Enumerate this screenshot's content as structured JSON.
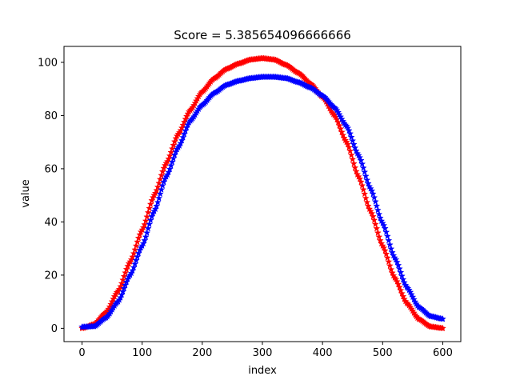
{
  "chart_data": {
    "type": "scatter",
    "title": "Score = 5.385654096666666",
    "xlabel": "index",
    "ylabel": "value",
    "xlim": [
      -30,
      630
    ],
    "ylim": [
      -5,
      106
    ],
    "xticks": [
      0,
      100,
      200,
      300,
      400,
      500,
      600
    ],
    "yticks": [
      0,
      20,
      40,
      60,
      80,
      100
    ],
    "grid": false,
    "legend": "none",
    "series": [
      {
        "color": "#ff0000",
        "marker": "star",
        "x": [
          0,
          20,
          40,
          60,
          80,
          100,
          120,
          140,
          160,
          180,
          200,
          220,
          240,
          260,
          280,
          300,
          320,
          340,
          360,
          380,
          400,
          420,
          440,
          460,
          480,
          500,
          520,
          540,
          560,
          580,
          600
        ],
        "values": [
          0,
          1.5,
          6,
          14,
          25,
          37,
          50,
          62,
          73,
          82,
          89,
          94,
          97.5,
          99.5,
          101,
          101.5,
          101,
          99,
          96,
          92,
          87,
          80,
          70,
          57,
          44,
          31,
          19,
          9.5,
          3.5,
          0.6,
          0
        ]
      },
      {
        "color": "#0000ff",
        "marker": "star",
        "x": [
          0,
          20,
          40,
          60,
          80,
          100,
          120,
          140,
          160,
          180,
          200,
          220,
          240,
          260,
          280,
          300,
          320,
          340,
          360,
          380,
          400,
          420,
          440,
          460,
          480,
          500,
          520,
          540,
          560,
          580,
          600
        ],
        "values": [
          0.5,
          0.7,
          4,
          10,
          20,
          31,
          44,
          57,
          68,
          78,
          84,
          88.5,
          91.5,
          93,
          94,
          94.5,
          94.5,
          94,
          92.5,
          90.5,
          87.5,
          83,
          76,
          65,
          52.5,
          39.5,
          26.5,
          15.5,
          8,
          4.5,
          3.5
        ]
      }
    ]
  }
}
